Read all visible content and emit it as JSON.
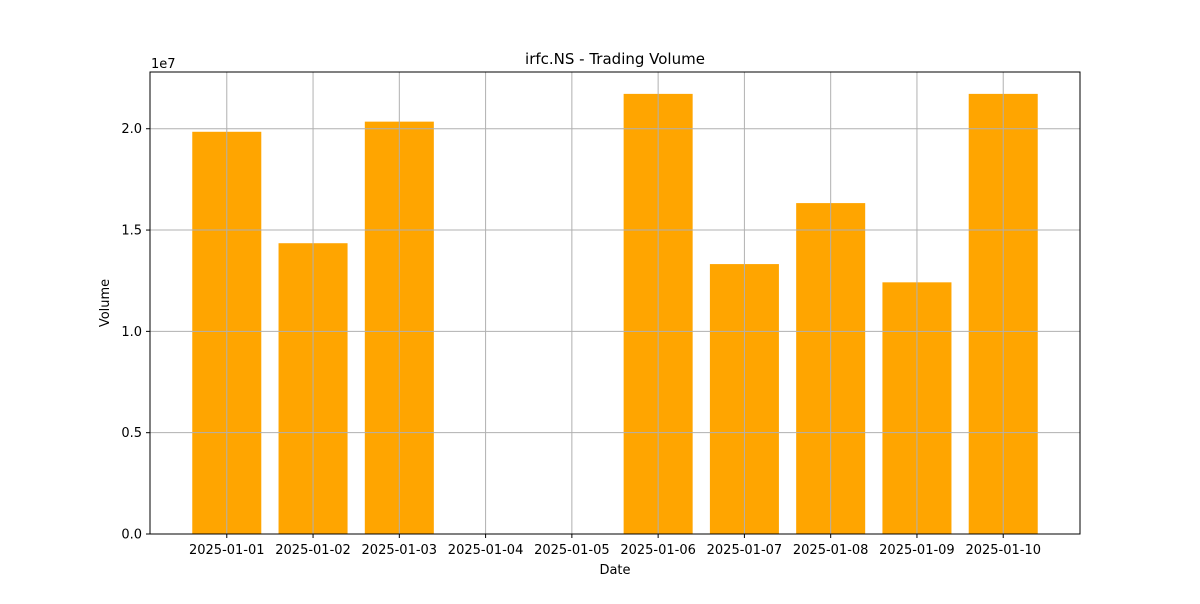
{
  "chart_data": {
    "type": "bar",
    "title": "irfc.NS - Trading Volume",
    "xlabel": "Date",
    "ylabel": "Volume",
    "y_scale_label": "1e7",
    "y_scale": 10000000,
    "categories": [
      "2025-01-01",
      "2025-01-02",
      "2025-01-03",
      "2025-01-04",
      "2025-01-05",
      "2025-01-06",
      "2025-01-07",
      "2025-01-08",
      "2025-01-09",
      "2025-01-10"
    ],
    "values": [
      19850000,
      14350000,
      20350000,
      0,
      0,
      21720000,
      13320000,
      16330000,
      12420000,
      21720000
    ],
    "ylim": [
      0,
      22800000
    ],
    "yticks": [
      0,
      5000000,
      10000000,
      15000000,
      20000000
    ],
    "ytick_labels": [
      "0.0",
      "0.5",
      "1.0",
      "1.5",
      "2.0"
    ],
    "grid": true,
    "bar_color": "#ffa500",
    "grid_color": "#b0b0b0"
  }
}
